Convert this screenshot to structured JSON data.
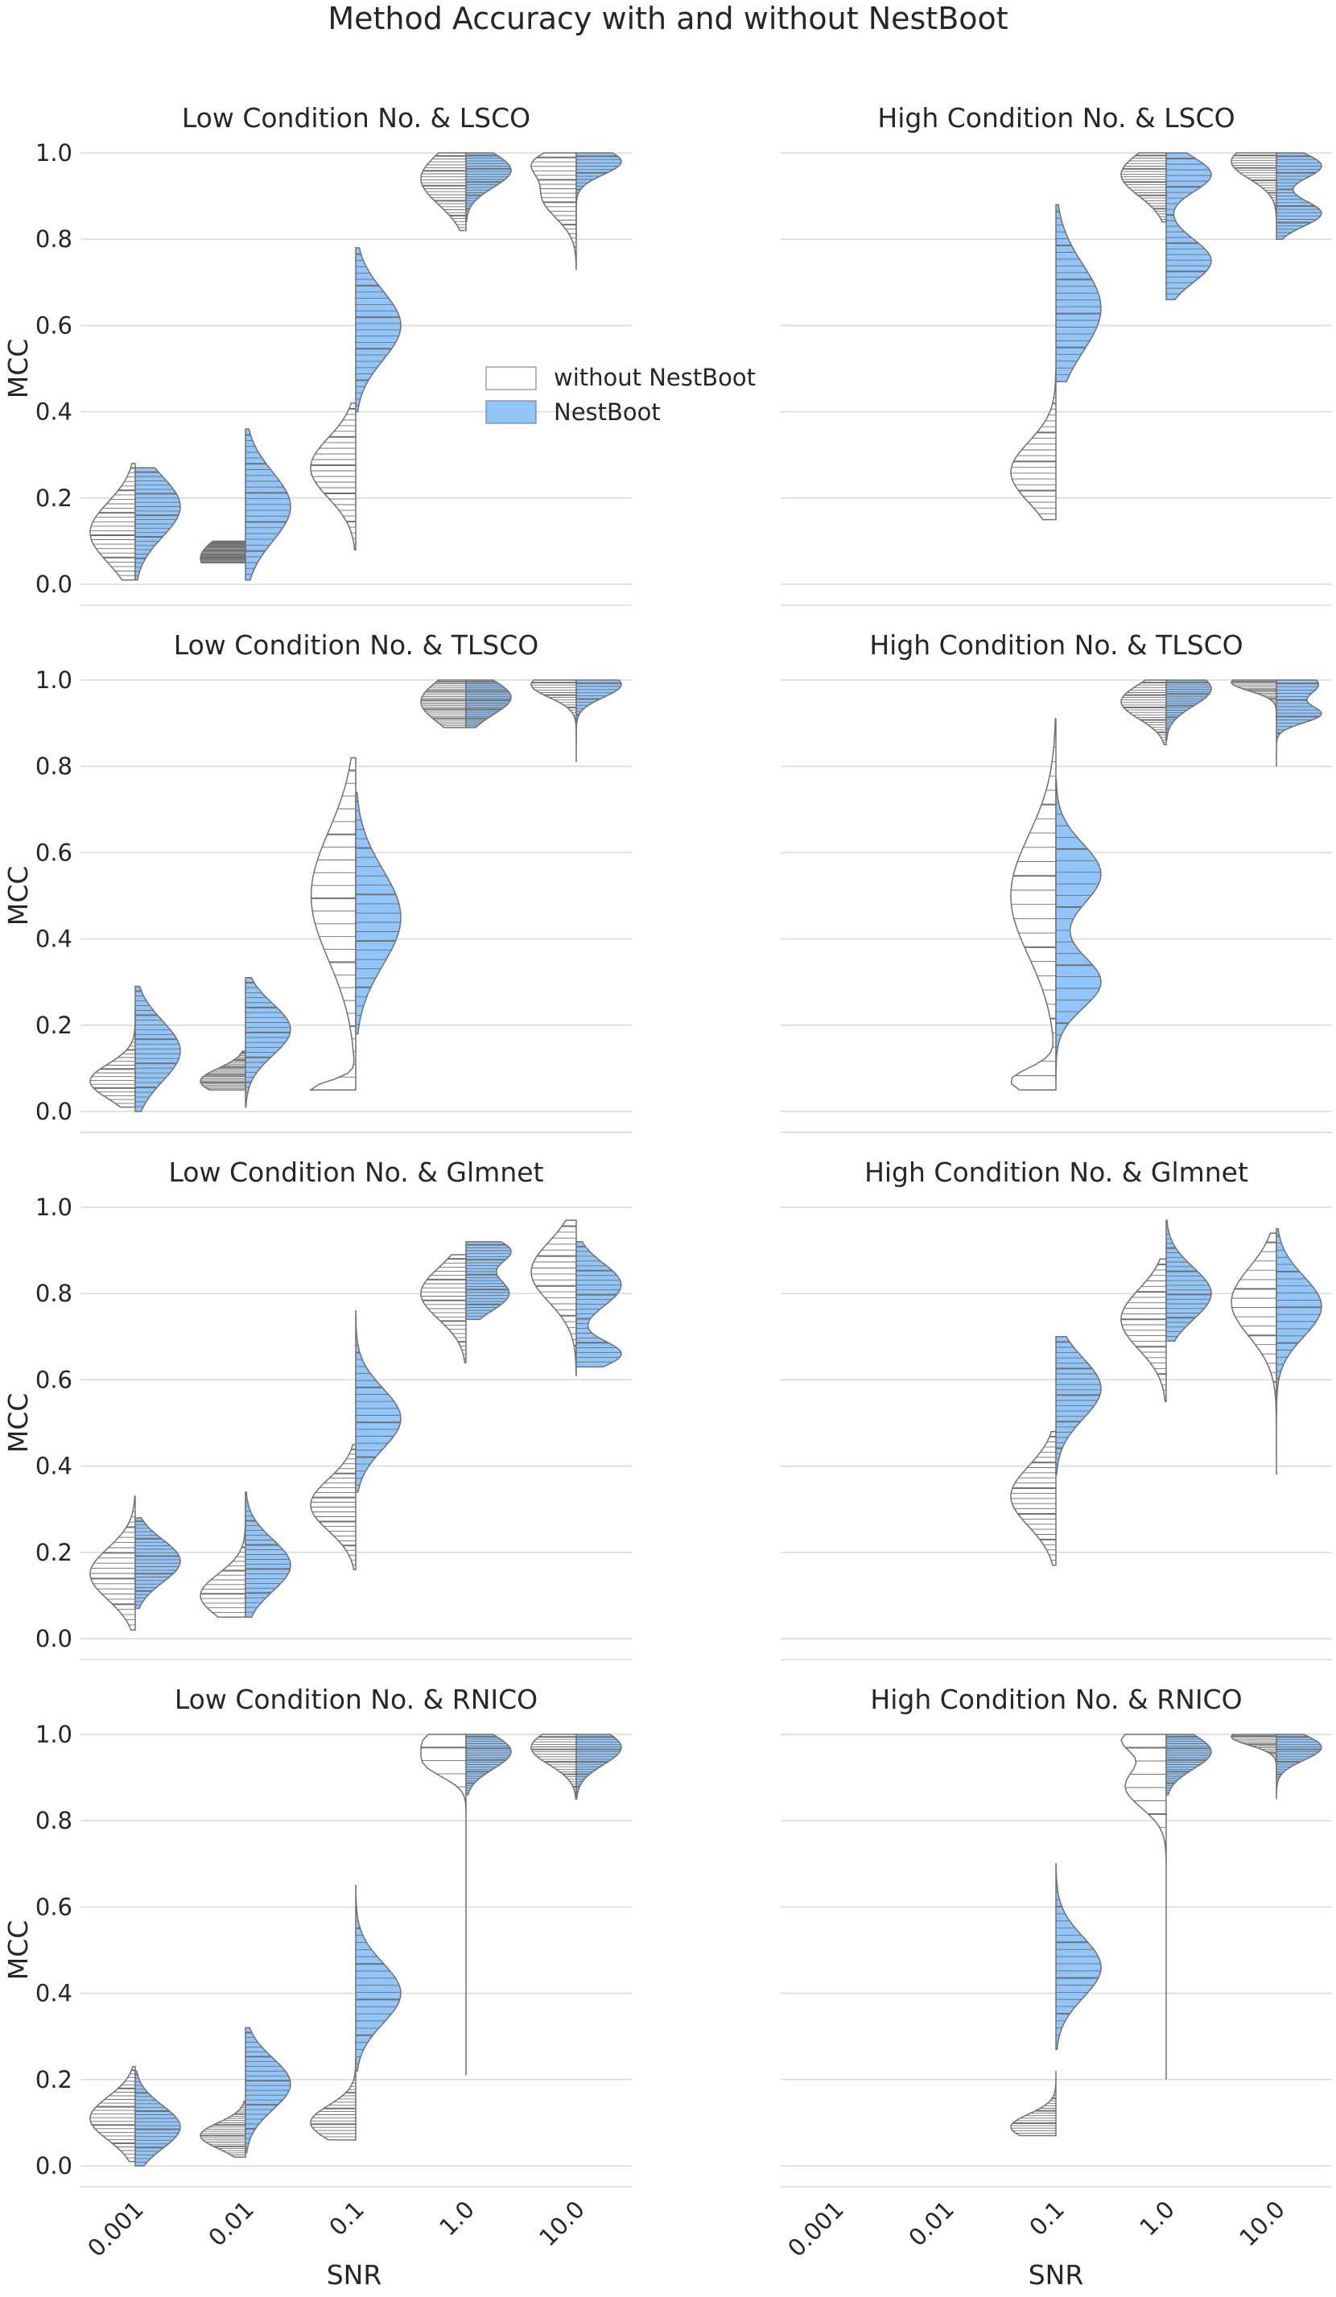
{
  "figure": {
    "title": "Method Accuracy with and without NestBoot",
    "xlabel": "SNR",
    "ylabel": "MCC",
    "ticks_y": [
      "0.0",
      "0.2",
      "0.4",
      "0.6",
      "0.8",
      "1.0"
    ],
    "ticks_x": [
      "0.001",
      "0.01",
      "0.1",
      "1.0",
      "10.0"
    ],
    "colors": {
      "without": "#ffffff",
      "nestboot": "#92c5fa",
      "edge": "#707070",
      "grid": "#d9d9d9"
    },
    "legend": {
      "placement": "inside top-left panel, center-right",
      "items": [
        {
          "label": "without NestBoot",
          "color": "#ffffff"
        },
        {
          "label": "NestBoot",
          "color": "#92c5fa"
        }
      ]
    }
  },
  "chart_data": [
    {
      "type": "violin",
      "title": "Low Condition No. &  LSCO",
      "ylim": [
        0,
        1
      ],
      "categories": [
        "0.001",
        "0.01",
        "0.1",
        "1.0",
        "10.0"
      ],
      "series": [
        {
          "name": "without NestBoot",
          "groups": [
            {
              "ymin": 0.01,
              "ymax": 0.28,
              "peaks": [
                [
                  0.12,
                  0.07
                ]
              ]
            },
            {
              "ymin": 0.05,
              "ymax": 0.1,
              "peaks": [
                [
                  0.06,
                  0.05
                ]
              ]
            },
            {
              "ymin": 0.08,
              "ymax": 0.42,
              "peaks": [
                [
                  0.27,
                  0.07
                ]
              ]
            },
            {
              "ymin": 0.82,
              "ymax": 1.0,
              "peaks": [
                [
                  0.94,
                  0.06
                ]
              ]
            },
            {
              "ymin": 0.73,
              "ymax": 1.0,
              "peaks": [
                [
                  0.98,
                  0.03
                ],
                [
                  0.9,
                  0.05
                ]
              ]
            }
          ]
        },
        {
          "name": "NestBoot",
          "groups": [
            {
              "ymin": 0.01,
              "ymax": 0.27,
              "peaks": [
                [
                  0.18,
                  0.07
                ]
              ]
            },
            {
              "ymin": 0.01,
              "ymax": 0.36,
              "peaks": [
                [
                  0.18,
                  0.08
                ]
              ]
            },
            {
              "ymin": 0.4,
              "ymax": 0.78,
              "peaks": [
                [
                  0.6,
                  0.08
                ]
              ]
            },
            {
              "ymin": 0.84,
              "ymax": 1.0,
              "peaks": [
                [
                  0.96,
                  0.04
                ]
              ]
            },
            {
              "ymin": 0.8,
              "ymax": 1.0,
              "peaks": [
                [
                  0.98,
                  0.03
                ]
              ]
            }
          ]
        }
      ]
    },
    {
      "type": "violin",
      "title": "High Condition No. &  LSCO",
      "ylim": [
        0,
        1
      ],
      "categories": [
        "0.001",
        "0.01",
        "0.1",
        "1.0",
        "10.0"
      ],
      "series": [
        {
          "name": "without NestBoot",
          "groups": [
            null,
            null,
            {
              "ymin": 0.15,
              "ymax": 0.5,
              "peaks": [
                [
                  0.26,
                  0.07
                ]
              ]
            },
            {
              "ymin": 0.84,
              "ymax": 1.0,
              "peaks": [
                [
                  0.95,
                  0.05
                ]
              ]
            },
            {
              "ymin": 0.85,
              "ymax": 1.0,
              "peaks": [
                [
                  0.98,
                  0.04
                ]
              ]
            }
          ]
        },
        {
          "name": "NestBoot",
          "groups": [
            null,
            null,
            {
              "ymin": 0.47,
              "ymax": 0.88,
              "peaks": [
                [
                  0.64,
                  0.1
                ]
              ]
            },
            {
              "ymin": 0.66,
              "ymax": 1.0,
              "peaks": [
                [
                  0.95,
                  0.04
                ],
                [
                  0.75,
                  0.05
                ]
              ]
            },
            {
              "ymin": 0.8,
              "ymax": 1.0,
              "peaks": [
                [
                  0.97,
                  0.03
                ],
                [
                  0.86,
                  0.03
                ]
              ]
            }
          ]
        }
      ]
    },
    {
      "type": "violin",
      "title": "Low Condition No. &  TLSCO",
      "ylim": [
        0,
        1
      ],
      "categories": [
        "0.001",
        "0.01",
        "0.1",
        "1.0",
        "10.0"
      ],
      "series": [
        {
          "name": "without NestBoot",
          "groups": [
            {
              "ymin": 0.01,
              "ymax": 0.24,
              "peaks": [
                [
                  0.07,
                  0.04
                ]
              ]
            },
            {
              "ymin": 0.05,
              "ymax": 0.14,
              "peaks": [
                [
                  0.07,
                  0.03
                ]
              ]
            },
            {
              "ymin": 0.05,
              "ymax": 0.82,
              "peaks": [
                [
                  0.05,
                  0.02
                ],
                [
                  0.5,
                  0.15
                ]
              ]
            },
            {
              "ymin": 0.89,
              "ymax": 1.0,
              "peaks": [
                [
                  0.95,
                  0.05
                ]
              ]
            },
            {
              "ymin": 0.85,
              "ymax": 1.0,
              "peaks": [
                [
                  0.99,
                  0.03
                ]
              ]
            }
          ]
        },
        {
          "name": "NestBoot",
          "groups": [
            {
              "ymin": 0.0,
              "ymax": 0.29,
              "peaks": [
                [
                  0.14,
                  0.07
                ]
              ]
            },
            {
              "ymin": 0.01,
              "ymax": 0.31,
              "peaks": [
                [
                  0.19,
                  0.06
                ]
              ]
            },
            {
              "ymin": 0.18,
              "ymax": 0.74,
              "peaks": [
                [
                  0.45,
                  0.11
                ]
              ]
            },
            {
              "ymin": 0.89,
              "ymax": 1.0,
              "peaks": [
                [
                  0.96,
                  0.04
                ]
              ]
            },
            {
              "ymin": 0.81,
              "ymax": 1.0,
              "peaks": [
                [
                  0.99,
                  0.03
                ]
              ]
            }
          ]
        }
      ]
    },
    {
      "type": "violin",
      "title": "High Condition No. &  TLSCO",
      "ylim": [
        0,
        1
      ],
      "categories": [
        "0.001",
        "0.01",
        "0.1",
        "1.0",
        "10.0"
      ],
      "series": [
        {
          "name": "without NestBoot",
          "groups": [
            null,
            null,
            {
              "ymin": 0.05,
              "ymax": 0.91,
              "peaks": [
                [
                  0.5,
                  0.14
                ],
                [
                  0.07,
                  0.03
                ]
              ]
            },
            {
              "ymin": 0.85,
              "ymax": 1.0,
              "peaks": [
                [
                  0.95,
                  0.04
                ]
              ]
            },
            {
              "ymin": 0.9,
              "ymax": 1.0,
              "peaks": [
                [
                  0.995,
                  0.02
                ]
              ]
            }
          ]
        },
        {
          "name": "NestBoot",
          "groups": [
            null,
            null,
            {
              "ymin": 0.07,
              "ymax": 0.77,
              "peaks": [
                [
                  0.55,
                  0.07
                ],
                [
                  0.3,
                  0.06
                ]
              ]
            },
            {
              "ymin": 0.86,
              "ymax": 1.0,
              "peaks": [
                [
                  0.98,
                  0.04
                ]
              ]
            },
            {
              "ymin": 0.8,
              "ymax": 1.0,
              "peaks": [
                [
                  0.99,
                  0.03
                ],
                [
                  0.92,
                  0.02
                ]
              ]
            }
          ]
        }
      ]
    },
    {
      "type": "violin",
      "title": "Low Condition No. &  Glmnet",
      "ylim": [
        0,
        1
      ],
      "categories": [
        "0.001",
        "0.01",
        "0.1",
        "1.0",
        "10.0"
      ],
      "series": [
        {
          "name": "without NestBoot",
          "groups": [
            {
              "ymin": 0.02,
              "ymax": 0.33,
              "peaks": [
                [
                  0.15,
                  0.06
                ]
              ]
            },
            {
              "ymin": 0.05,
              "ymax": 0.33,
              "peaks": [
                [
                  0.1,
                  0.05
                ]
              ]
            },
            {
              "ymin": 0.16,
              "ymax": 0.45,
              "peaks": [
                [
                  0.31,
                  0.06
                ]
              ]
            },
            {
              "ymin": 0.64,
              "ymax": 0.89,
              "peaks": [
                [
                  0.8,
                  0.06
                ]
              ]
            },
            {
              "ymin": 0.61,
              "ymax": 0.97,
              "peaks": [
                [
                  0.85,
                  0.07
                ]
              ]
            }
          ]
        },
        {
          "name": "NestBoot",
          "groups": [
            {
              "ymin": 0.07,
              "ymax": 0.28,
              "peaks": [
                [
                  0.18,
                  0.05
                ]
              ]
            },
            {
              "ymin": 0.05,
              "ymax": 0.34,
              "peaks": [
                [
                  0.17,
                  0.06
                ]
              ]
            },
            {
              "ymin": 0.34,
              "ymax": 0.76,
              "peaks": [
                [
                  0.51,
                  0.07
                ]
              ]
            },
            {
              "ymin": 0.74,
              "ymax": 0.92,
              "peaks": [
                [
                  0.8,
                  0.04
                ],
                [
                  0.9,
                  0.03
                ]
              ]
            },
            {
              "ymin": 0.63,
              "ymax": 0.92,
              "peaks": [
                [
                  0.66,
                  0.03
                ],
                [
                  0.82,
                  0.05
                ]
              ]
            }
          ]
        }
      ]
    },
    {
      "type": "violin",
      "title": "High Condition No. &  Glmnet",
      "ylim": [
        0,
        1
      ],
      "categories": [
        "0.001",
        "0.01",
        "0.1",
        "1.0",
        "10.0"
      ],
      "series": [
        {
          "name": "without NestBoot",
          "groups": [
            null,
            null,
            {
              "ymin": 0.17,
              "ymax": 0.48,
              "peaks": [
                [
                  0.33,
                  0.07
                ]
              ]
            },
            {
              "ymin": 0.55,
              "ymax": 0.88,
              "peaks": [
                [
                  0.74,
                  0.07
                ]
              ]
            },
            {
              "ymin": 0.38,
              "ymax": 0.94,
              "peaks": [
                [
                  0.78,
                  0.08
                ]
              ]
            }
          ]
        },
        {
          "name": "NestBoot",
          "groups": [
            null,
            null,
            {
              "ymin": 0.38,
              "ymax": 0.7,
              "peaks": [
                [
                  0.58,
                  0.07
                ]
              ]
            },
            {
              "ymin": 0.69,
              "ymax": 0.97,
              "peaks": [
                [
                  0.8,
                  0.06
                ]
              ]
            },
            {
              "ymin": 0.52,
              "ymax": 0.95,
              "peaks": [
                [
                  0.77,
                  0.07
                ]
              ]
            }
          ]
        }
      ]
    },
    {
      "type": "violin",
      "title": "Low Condition No. &  RNICO",
      "ylim": [
        0,
        1
      ],
      "categories": [
        "0.001",
        "0.01",
        "0.1",
        "1.0",
        "10.0"
      ],
      "series": [
        {
          "name": "without NestBoot",
          "groups": [
            {
              "ymin": 0.01,
              "ymax": 0.23,
              "peaks": [
                [
                  0.11,
                  0.05
                ]
              ]
            },
            {
              "ymin": 0.02,
              "ymax": 0.15,
              "peaks": [
                [
                  0.07,
                  0.03
                ]
              ]
            },
            {
              "ymin": 0.06,
              "ymax": 0.25,
              "peaks": [
                [
                  0.1,
                  0.04
                ]
              ]
            },
            {
              "ymin": 0.21,
              "ymax": 1.0,
              "peaks": [
                [
                  0.99,
                  0.03
                ],
                [
                  0.93,
                  0.03
                ]
              ]
            },
            {
              "ymin": 0.85,
              "ymax": 1.0,
              "peaks": [
                [
                  0.97,
                  0.04
                ]
              ]
            }
          ]
        },
        {
          "name": "NestBoot",
          "groups": [
            {
              "ymin": 0.0,
              "ymax": 0.22,
              "peaks": [
                [
                  0.09,
                  0.05
                ]
              ]
            },
            {
              "ymin": 0.03,
              "ymax": 0.32,
              "peaks": [
                [
                  0.19,
                  0.06
                ]
              ]
            },
            {
              "ymin": 0.22,
              "ymax": 0.65,
              "peaks": [
                [
                  0.4,
                  0.07
                ]
              ]
            },
            {
              "ymin": 0.86,
              "ymax": 1.0,
              "peaks": [
                [
                  0.96,
                  0.04
                ]
              ]
            },
            {
              "ymin": 0.85,
              "ymax": 1.0,
              "peaks": [
                [
                  0.97,
                  0.04
                ]
              ]
            }
          ]
        }
      ]
    },
    {
      "type": "violin",
      "title": "High Condition No. &  RNICO",
      "ylim": [
        0,
        1
      ],
      "categories": [
        "0.001",
        "0.01",
        "0.1",
        "1.0",
        "10.0"
      ],
      "series": [
        {
          "name": "without NestBoot",
          "groups": [
            null,
            null,
            {
              "ymin": 0.07,
              "ymax": 0.22,
              "peaks": [
                [
                  0.09,
                  0.03
                ]
              ]
            },
            {
              "ymin": 0.2,
              "ymax": 1.0,
              "peaks": [
                [
                  0.99,
                  0.03
                ],
                [
                  0.88,
                  0.05
                ]
              ]
            },
            {
              "ymin": 0.9,
              "ymax": 1.0,
              "peaks": [
                [
                  0.995,
                  0.02
                ]
              ]
            }
          ]
        },
        {
          "name": "NestBoot",
          "groups": [
            null,
            null,
            {
              "ymin": 0.27,
              "ymax": 0.7,
              "peaks": [
                [
                  0.46,
                  0.07
                ]
              ]
            },
            {
              "ymin": 0.86,
              "ymax": 1.0,
              "peaks": [
                [
                  0.96,
                  0.04
                ]
              ]
            },
            {
              "ymin": 0.85,
              "ymax": 1.0,
              "peaks": [
                [
                  0.97,
                  0.03
                ]
              ]
            }
          ]
        }
      ]
    }
  ]
}
